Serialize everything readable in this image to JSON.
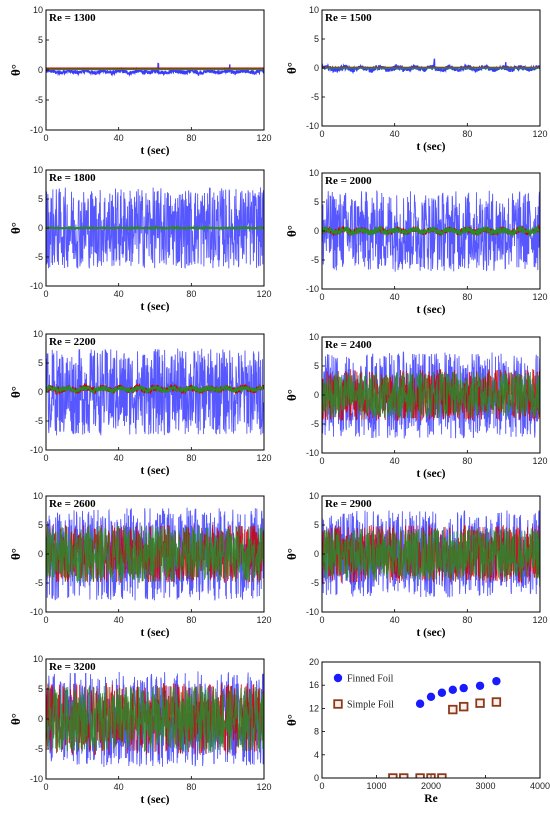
{
  "chart_data": [
    {
      "type": "line",
      "panel": 1,
      "annotation": "Re = 1300",
      "xlabel": "t (sec)",
      "ylabel": "θ°",
      "xlim": [
        0,
        120
      ],
      "ylim": [
        -10,
        10
      ],
      "x_ticks": [
        "0",
        "40",
        "80",
        "120"
      ],
      "y_ticks": [
        "10",
        "5",
        "0",
        "-5",
        "-10"
      ],
      "series": [
        {
          "color": "#3a3aff",
          "amplitude": 0.3,
          "mean": -0.3
        },
        {
          "color": "#cc0000",
          "amplitude": 0.0,
          "mean": 0.3
        },
        {
          "color": "#2a8a2a",
          "amplitude": 0.0,
          "mean": 0.1
        }
      ]
    },
    {
      "type": "line",
      "panel": 2,
      "annotation": "Re = 1500",
      "xlabel": "t (sec)",
      "ylabel": "θ°",
      "xlim": [
        0,
        120
      ],
      "ylim": [
        -10,
        10
      ],
      "x_ticks": [
        "0",
        "40",
        "80",
        "120"
      ],
      "y_ticks": [
        "10",
        "5",
        "0",
        "-5",
        "-10"
      ],
      "series": [
        {
          "color": "#3a3aff",
          "amplitude": 0.4,
          "mean": -0.1
        },
        {
          "color": "#cc0000",
          "amplitude": 0.0,
          "mean": 0.1
        },
        {
          "color": "#2a8a2a",
          "amplitude": 0.0,
          "mean": 0.0
        }
      ]
    },
    {
      "type": "line",
      "panel": 3,
      "annotation": "Re = 1800",
      "xlabel": "t (sec)",
      "ylabel": "θ°",
      "xlim": [
        0,
        120
      ],
      "ylim": [
        -10,
        10
      ],
      "x_ticks": [
        "0",
        "40",
        "80",
        "120"
      ],
      "y_ticks": [
        "10",
        "5",
        "0",
        "-5",
        "-10"
      ],
      "series": [
        {
          "color": "#3a3aff",
          "amplitude": 7.0,
          "mean": 0
        },
        {
          "color": "#cc0000",
          "amplitude": 0.0,
          "mean": 0
        },
        {
          "color": "#2a8a2a",
          "amplitude": 0.1,
          "mean": 0
        }
      ]
    },
    {
      "type": "line",
      "panel": 4,
      "annotation": "Re = 2000",
      "xlabel": "t (sec)",
      "ylabel": "θ°",
      "xlim": [
        0,
        120
      ],
      "ylim": [
        -10,
        10
      ],
      "x_ticks": [
        "0",
        "40",
        "80",
        "120"
      ],
      "y_ticks": [
        "10",
        "5",
        "0",
        "-5",
        "-10"
      ],
      "series": [
        {
          "color": "#3a3aff",
          "amplitude": 7.0,
          "mean": 0
        },
        {
          "color": "#cc0000",
          "amplitude": 0.5,
          "mean": 0
        },
        {
          "color": "#2a8a2a",
          "amplitude": 0.5,
          "mean": 0
        }
      ]
    },
    {
      "type": "line",
      "panel": 5,
      "annotation": "Re = 2200",
      "xlabel": "t (sec)",
      "ylabel": "θ°",
      "xlim": [
        0,
        120
      ],
      "ylim": [
        -10,
        10
      ],
      "x_ticks": [
        "0",
        "40",
        "80",
        "120"
      ],
      "y_ticks": [
        "10",
        "5",
        "0",
        "-5",
        "-10"
      ],
      "series": [
        {
          "color": "#3a3aff",
          "amplitude": 7.5,
          "mean": 0
        },
        {
          "color": "#cc0000",
          "amplitude": 0.5,
          "mean": 0.5
        },
        {
          "color": "#2a8a2a",
          "amplitude": 0.4,
          "mean": 0.5
        }
      ]
    },
    {
      "type": "line",
      "panel": 6,
      "annotation": "Re = 2400",
      "xlabel": "t (sec)",
      "ylabel": "θ°",
      "xlim": [
        0,
        120
      ],
      "ylim": [
        -10,
        10
      ],
      "x_ticks": [
        "0",
        "40",
        "80",
        "120"
      ],
      "y_ticks": [
        "10",
        "5",
        "0",
        "-5",
        "-10"
      ],
      "series": [
        {
          "color": "#3a3aff",
          "amplitude": 7.5,
          "mean": 0
        },
        {
          "color": "#cc0000",
          "amplitude": 4.5,
          "mean": 0
        },
        {
          "color": "#2a8a2a",
          "amplitude": 4.0,
          "mean": 0
        }
      ]
    },
    {
      "type": "line",
      "panel": 7,
      "annotation": "Re = 2600",
      "xlabel": "t (sec)",
      "ylabel": "θ°",
      "xlim": [
        0,
        120
      ],
      "ylim": [
        -10,
        10
      ],
      "x_ticks": [
        "0",
        "40",
        "80",
        "120"
      ],
      "y_ticks": [
        "10",
        "5",
        "0",
        "-5",
        "-10"
      ],
      "series": [
        {
          "color": "#3a3aff",
          "amplitude": 8.0,
          "mean": 0
        },
        {
          "color": "#cc0000",
          "amplitude": 5.0,
          "mean": 0
        },
        {
          "color": "#2a8a2a",
          "amplitude": 5.0,
          "mean": 0
        }
      ]
    },
    {
      "type": "line",
      "panel": 8,
      "annotation": "Re = 2900",
      "xlabel": "t (sec)",
      "ylabel": "θ°",
      "xlim": [
        0,
        120
      ],
      "ylim": [
        -10,
        10
      ],
      "x_ticks": [
        "0",
        "40",
        "80",
        "120"
      ],
      "y_ticks": [
        "10",
        "5",
        "0",
        "-5",
        "-10"
      ],
      "series": [
        {
          "color": "#3a3aff",
          "amplitude": 7.5,
          "mean": 0
        },
        {
          "color": "#cc0000",
          "amplitude": 5.0,
          "mean": 0
        },
        {
          "color": "#2a8a2a",
          "amplitude": 4.5,
          "mean": 0
        }
      ]
    },
    {
      "type": "line",
      "panel": 9,
      "annotation": "Re = 3200",
      "xlabel": "t (sec)",
      "ylabel": "θ°",
      "xlim": [
        0,
        120
      ],
      "ylim": [
        -10,
        10
      ],
      "x_ticks": [
        "0",
        "40",
        "80",
        "120"
      ],
      "y_ticks": [
        "10",
        "5",
        "0",
        "-5",
        "-10"
      ],
      "series": [
        {
          "color": "#3a3aff",
          "amplitude": 8.0,
          "mean": 0
        },
        {
          "color": "#cc0000",
          "amplitude": 6.0,
          "mean": 0
        },
        {
          "color": "#2a8a2a",
          "amplitude": 5.5,
          "mean": 0
        }
      ]
    },
    {
      "type": "scatter",
      "panel": 10,
      "xlabel": "Re",
      "ylabel": "θ°",
      "xlim": [
        0,
        4000
      ],
      "ylim": [
        0,
        20
      ],
      "x_ticks": [
        "0",
        "1000",
        "2000",
        "3000",
        "4000"
      ],
      "y_ticks": [
        "20",
        "16",
        "12",
        "8",
        "4",
        "0"
      ],
      "legend": "top-left",
      "series": [
        {
          "name": "Finned Foil",
          "marker": "filled-circle",
          "color": "#1a1aff",
          "x": [
            1800,
            2000,
            2200,
            2400,
            2600,
            2900,
            3200
          ],
          "y": [
            12.8,
            14.0,
            14.7,
            15.2,
            15.5,
            15.9,
            16.7
          ]
        },
        {
          "name": "Simple Foil",
          "marker": "open-square",
          "color": "#8b3a1a",
          "x": [
            1300,
            1500,
            1800,
            2000,
            2200,
            2400,
            2600,
            2900,
            3200
          ],
          "y": [
            0,
            0,
            0,
            0,
            0,
            11.8,
            12.3,
            12.9,
            13.1
          ]
        }
      ]
    }
  ]
}
